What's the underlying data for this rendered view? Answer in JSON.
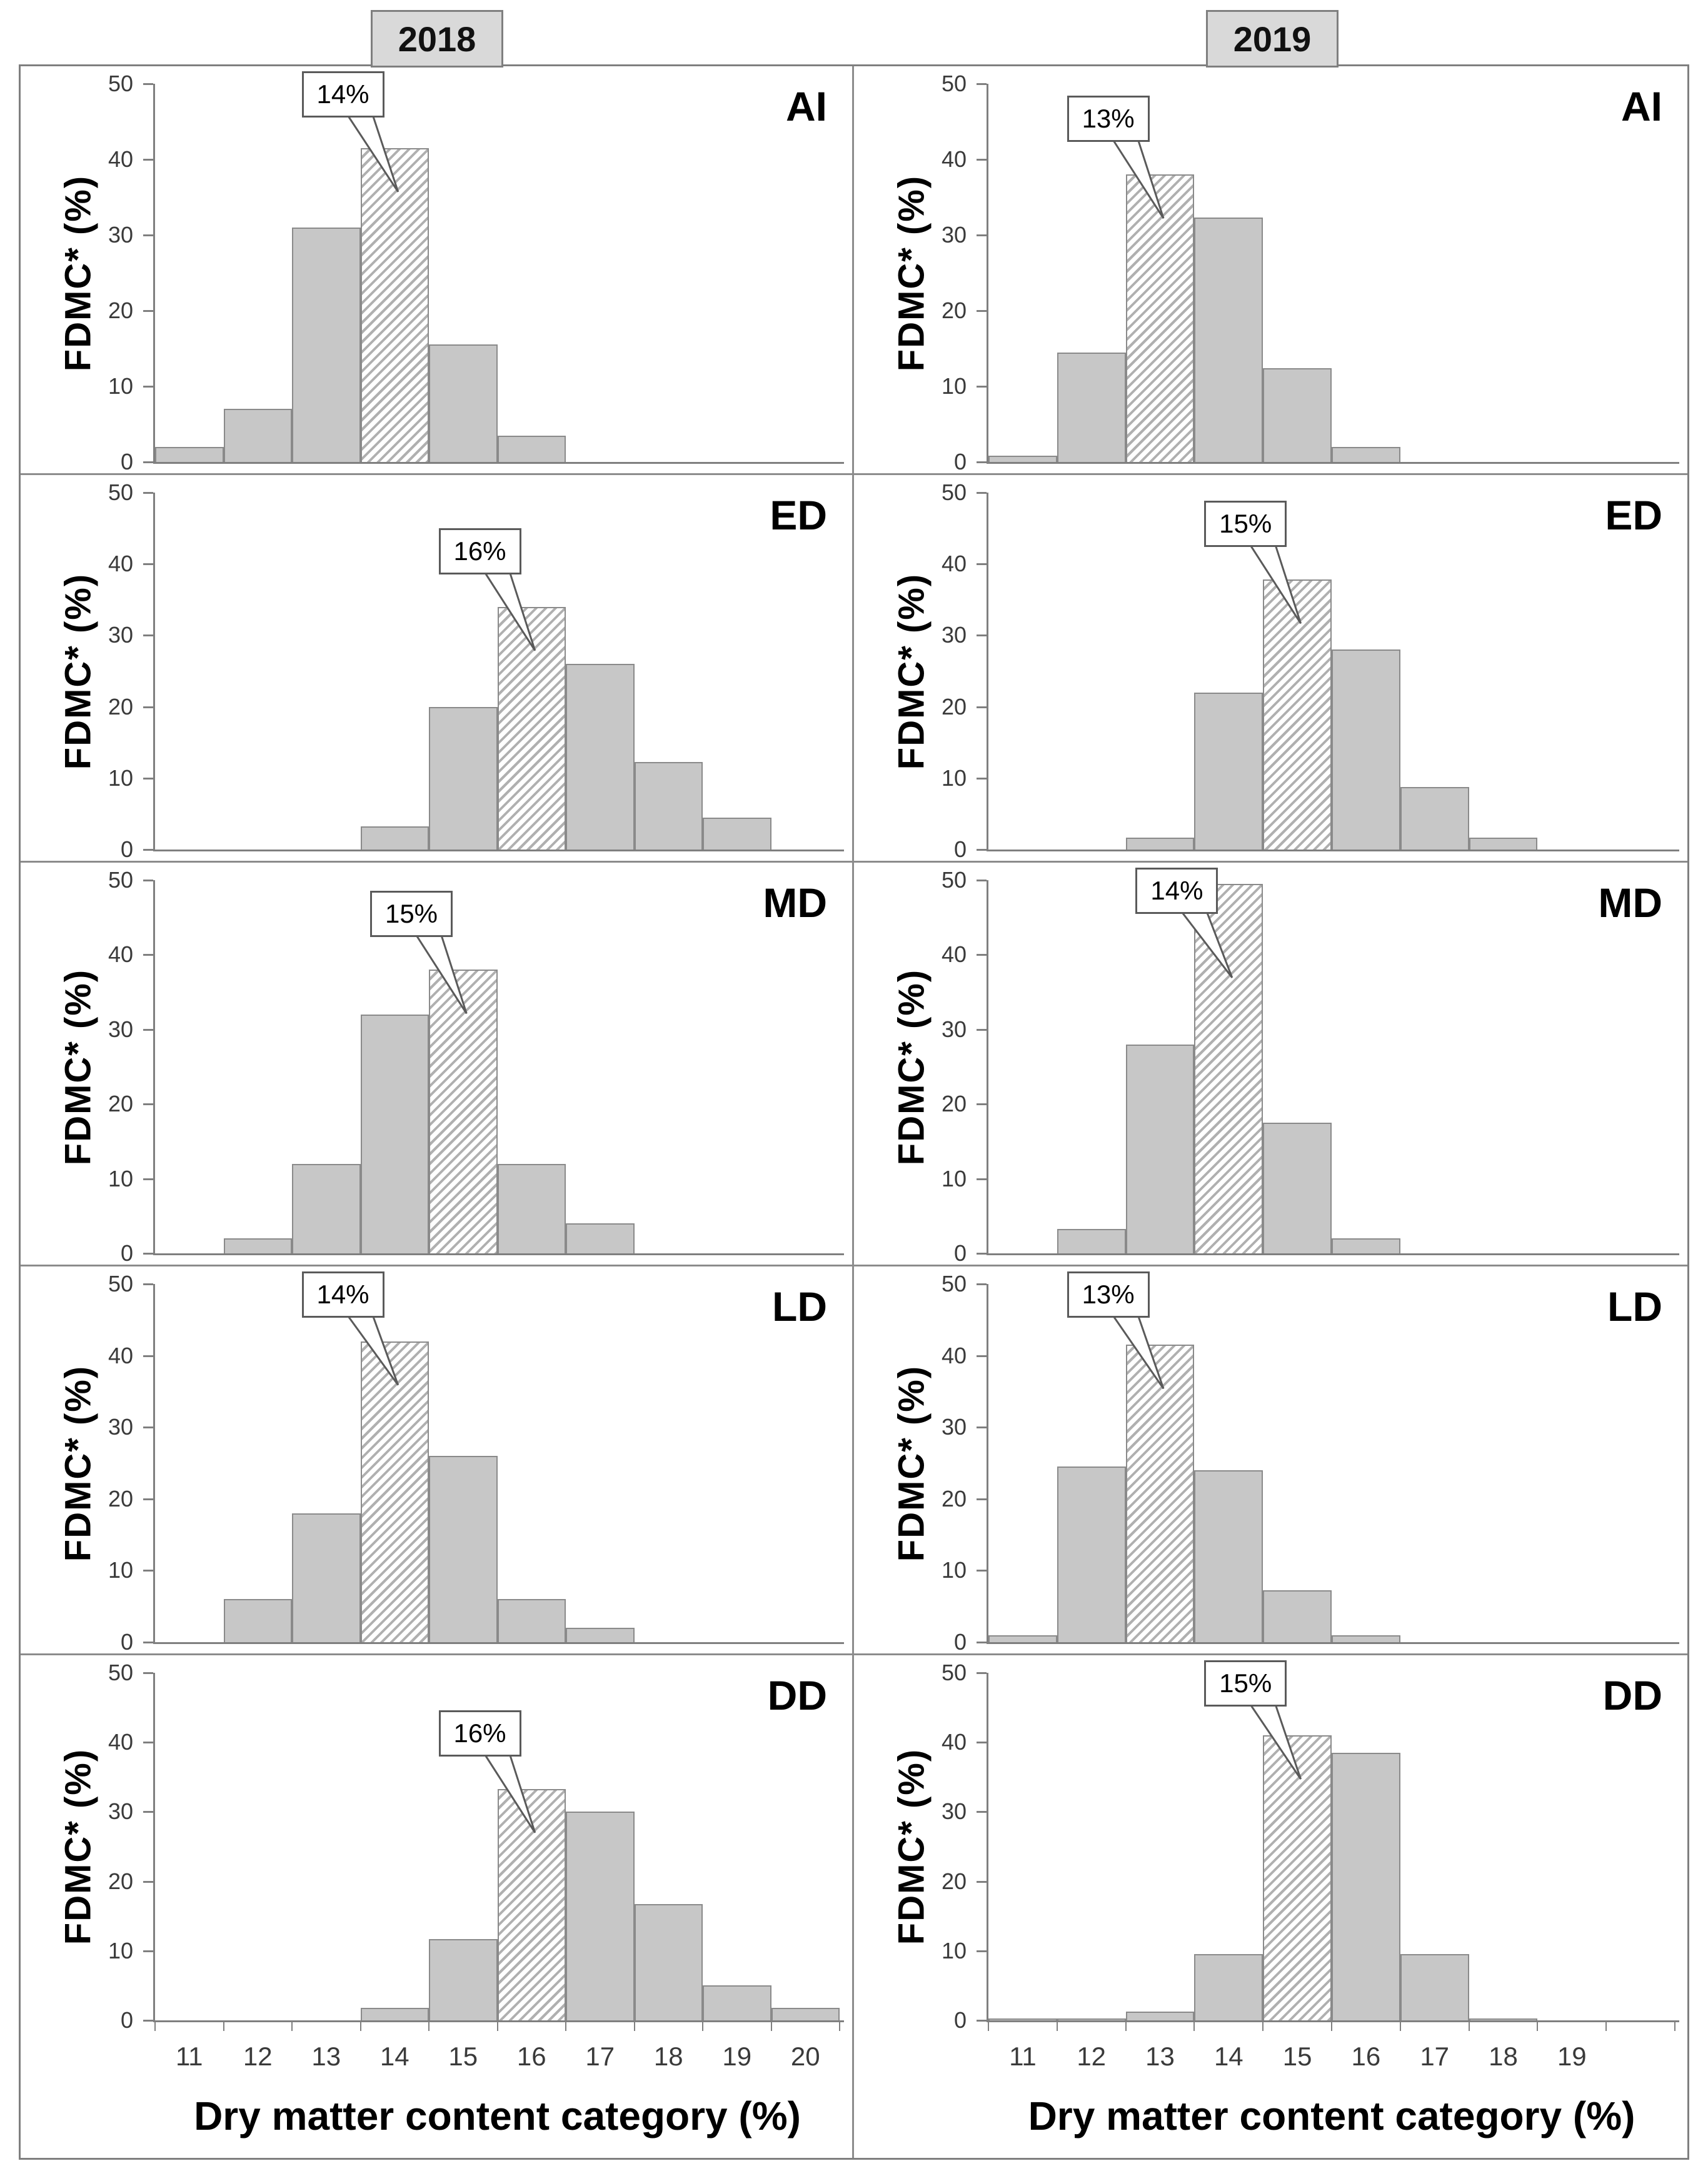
{
  "figure": {
    "column_headers": [
      "2018",
      "2019"
    ],
    "y_axis_title": "FDMC* (%)",
    "x_axis_title": "Dry matter content category (%)",
    "y_ticks": [
      "0",
      "10",
      "20",
      "30",
      "40",
      "50"
    ],
    "y_max": 50,
    "x_tick_labels_2018": [
      "11",
      "12",
      "13",
      "14",
      "15",
      "16",
      "17",
      "18",
      "19",
      "20"
    ],
    "x_tick_labels_2019": [
      "11",
      "12",
      "13",
      "14",
      "15",
      "16",
      "17",
      "18",
      "19"
    ],
    "colors": {
      "bar_fill": "#c7c7c7",
      "bar_border": "#8a8a8a",
      "hatch_stripe": "#b0b0b0",
      "header_fill": "#d9d9d9",
      "axis": "#7f7f7f",
      "callout_border": "#5a5a5a"
    }
  },
  "chart_data": [
    {
      "type": "bar",
      "panel_label": "AI",
      "year": "2018",
      "row": 0,
      "col": 0,
      "ylim": [
        0,
        50
      ],
      "categories": [
        11,
        12,
        13,
        14,
        15,
        16,
        17,
        18,
        19,
        20
      ],
      "values": [
        2,
        7,
        31,
        41.5,
        15.5,
        3.5,
        0,
        0,
        0,
        0
      ],
      "hatched_category": 14,
      "callout_label": "14%"
    },
    {
      "type": "bar",
      "panel_label": "AI",
      "year": "2019",
      "row": 0,
      "col": 1,
      "ylim": [
        0,
        50
      ],
      "categories": [
        11,
        12,
        13,
        14,
        15,
        16,
        17,
        18,
        19,
        20
      ],
      "values": [
        0.8,
        14.5,
        38,
        32.3,
        12.4,
        2,
        0,
        0,
        0,
        0
      ],
      "hatched_category": 13,
      "callout_label": "13%"
    },
    {
      "type": "bar",
      "panel_label": "ED",
      "year": "2018",
      "row": 1,
      "col": 0,
      "ylim": [
        0,
        50
      ],
      "categories": [
        11,
        12,
        13,
        14,
        15,
        16,
        17,
        18,
        19,
        20
      ],
      "values": [
        0,
        0,
        0,
        3.2,
        20,
        34,
        26,
        12.3,
        4.5,
        0
      ],
      "hatched_category": 16,
      "callout_label": "16%"
    },
    {
      "type": "bar",
      "panel_label": "ED",
      "year": "2019",
      "row": 1,
      "col": 1,
      "ylim": [
        0,
        50
      ],
      "categories": [
        11,
        12,
        13,
        14,
        15,
        16,
        17,
        18,
        19,
        20
      ],
      "values": [
        0,
        0,
        1.7,
        22,
        37.8,
        28,
        8.8,
        1.7,
        0,
        0
      ],
      "hatched_category": 15,
      "callout_label": "15%"
    },
    {
      "type": "bar",
      "panel_label": "MD",
      "year": "2018",
      "row": 2,
      "col": 0,
      "ylim": [
        0,
        50
      ],
      "categories": [
        11,
        12,
        13,
        14,
        15,
        16,
        17,
        18,
        19,
        20
      ],
      "values": [
        0,
        2,
        12,
        32,
        38,
        12,
        4,
        0,
        0,
        0
      ],
      "hatched_category": 15,
      "callout_label": "15%"
    },
    {
      "type": "bar",
      "panel_label": "MD",
      "year": "2019",
      "row": 2,
      "col": 1,
      "ylim": [
        0,
        50
      ],
      "categories": [
        11,
        12,
        13,
        14,
        15,
        16,
        17,
        18,
        19,
        20
      ],
      "values": [
        0,
        3.3,
        28,
        49.5,
        17.5,
        2,
        0,
        0,
        0,
        0
      ],
      "hatched_category": 14,
      "callout_label": "14%"
    },
    {
      "type": "bar",
      "panel_label": "LD",
      "year": "2018",
      "row": 3,
      "col": 0,
      "ylim": [
        0,
        50
      ],
      "categories": [
        11,
        12,
        13,
        14,
        15,
        16,
        17,
        18,
        19,
        20
      ],
      "values": [
        0,
        6,
        18,
        42,
        26,
        6,
        2,
        0,
        0,
        0
      ],
      "hatched_category": 14,
      "callout_label": "14%"
    },
    {
      "type": "bar",
      "panel_label": "LD",
      "year": "2019",
      "row": 3,
      "col": 1,
      "ylim": [
        0,
        50
      ],
      "categories": [
        11,
        12,
        13,
        14,
        15,
        16,
        17,
        18,
        19,
        20
      ],
      "values": [
        1,
        24.5,
        41.5,
        24,
        7.2,
        1,
        0,
        0,
        0,
        0
      ],
      "hatched_category": 13,
      "callout_label": "13%"
    },
    {
      "type": "bar",
      "panel_label": "DD",
      "year": "2018",
      "row": 4,
      "col": 0,
      "ylim": [
        0,
        50
      ],
      "categories": [
        11,
        12,
        13,
        14,
        15,
        16,
        17,
        18,
        19,
        20
      ],
      "values": [
        0,
        0,
        0,
        1.8,
        11.7,
        33.3,
        30,
        16.7,
        5,
        1.8
      ],
      "hatched_category": 16,
      "callout_label": "16%"
    },
    {
      "type": "bar",
      "panel_label": "DD",
      "year": "2019",
      "row": 4,
      "col": 1,
      "ylim": [
        0,
        50
      ],
      "categories": [
        11,
        12,
        13,
        14,
        15,
        16,
        17,
        18,
        19,
        20
      ],
      "values": [
        0.3,
        0.3,
        1.3,
        9.5,
        41,
        38.5,
        9.5,
        0.3,
        0,
        0
      ],
      "hatched_category": 15,
      "callout_label": "15%"
    }
  ]
}
